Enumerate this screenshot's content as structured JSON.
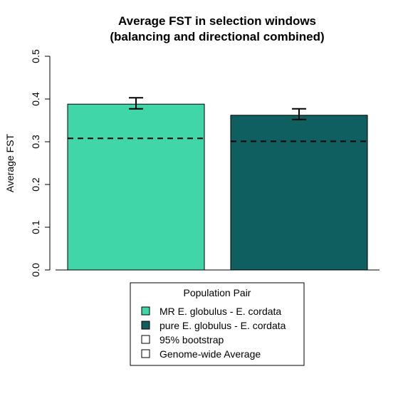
{
  "chart_data": {
    "type": "bar",
    "title": "Average FST in selection windows",
    "subtitle": "(balancing and directional combined)",
    "xlabel": "",
    "ylabel": "Average FST",
    "ylim": [
      0,
      0.5
    ],
    "yticks": [
      "0.0",
      "0.1",
      "0.2",
      "0.3",
      "0.4",
      "0.5"
    ],
    "grid": false,
    "categories": [
      "MR E. globulus - E. cordata",
      "pure E. globulus - E. cordata"
    ],
    "values": [
      0.388,
      0.362
    ],
    "error_low": [
      0.377,
      0.352
    ],
    "error_high": [
      0.403,
      0.377
    ],
    "genome_wide_average": [
      0.308,
      0.301
    ],
    "colors": [
      "#40d6a8",
      "#0f5e60"
    ],
    "legend": {
      "title": "Population Pair",
      "placement": "bottom-center",
      "entries": [
        {
          "label": "MR E. globulus - E. cordata",
          "color": "#40d6a8"
        },
        {
          "label": "pure E. globulus - E. cordata",
          "color": "#0f5e60"
        },
        {
          "label": "95% bootstrap",
          "color": "#ffffff"
        },
        {
          "label": "Genome-wide Average",
          "color": "#ffffff"
        }
      ]
    }
  }
}
